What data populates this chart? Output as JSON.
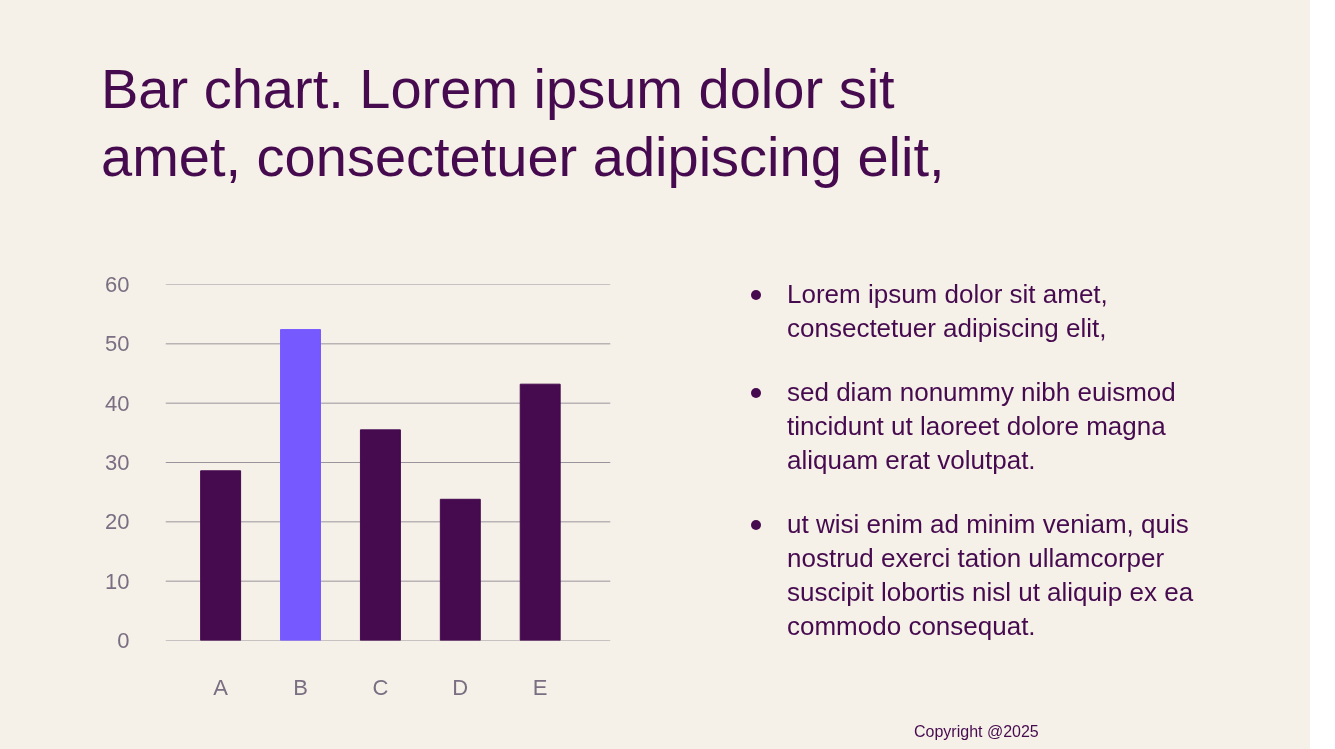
{
  "chart_data": {
    "type": "bar",
    "title": "Bar chart. Lorem ipsum dolor sit amet, consectetuer adipiscing elit,",
    "categories": [
      "A",
      "B",
      "C",
      "D",
      "E"
    ],
    "values": [
      28.6,
      52.4,
      35.5,
      23.8,
      43.2
    ],
    "colors": [
      "#460a4f",
      "#7659ff",
      "#460a4f",
      "#460a4f",
      "#460a4f"
    ],
    "ylim": [
      0,
      60
    ],
    "yticks": [
      0,
      10,
      20,
      30,
      40,
      50,
      60
    ],
    "grid": "y",
    "annotations": [
      "Lorem ipsum dolor sit amet, consectetuer adipiscing elit,",
      "sed diam nonummy nibh euismod tincidunt ut laoreet dolore magna aliquam erat volutpat.",
      "ut wisi enim ad minim veniam, quis nostrud exerci tation ullamcorper suscipit lobortis nisl ut aliquip ex ea commodo consequat.",
      "Copyright @2025"
    ]
  }
}
